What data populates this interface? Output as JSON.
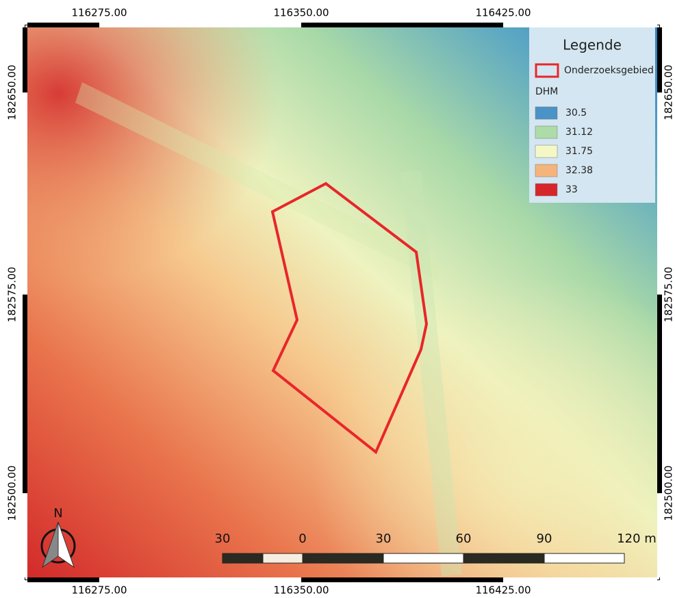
{
  "frame": {
    "top_labels": [
      "116275.00",
      "116350.00",
      "116425.00"
    ],
    "bottom_labels": [
      "116275.00",
      "116350.00",
      "116425.00"
    ],
    "left_labels": [
      "182650.00",
      "182575.00",
      "182500.00"
    ],
    "right_labels": [
      "182650.00",
      "182575.00",
      "182500.00"
    ]
  },
  "legend": {
    "title": "Legende",
    "area_label": "Onderzoeksgebied",
    "area_color": "#e8262a",
    "raster_title": "DHM",
    "entries": [
      {
        "label": "30.5",
        "color": "#4a93c6"
      },
      {
        "label": "31.12",
        "color": "#addca9"
      },
      {
        "label": "31.75",
        "color": "#f4f8c6"
      },
      {
        "label": "32.38",
        "color": "#f5b47c"
      },
      {
        "label": "33",
        "color": "#d7262b"
      }
    ]
  },
  "scale_bar": {
    "labels": [
      "30",
      "0",
      "30",
      "60",
      "90",
      "120 m"
    ]
  },
  "north_arrow": {
    "label": "N"
  }
}
